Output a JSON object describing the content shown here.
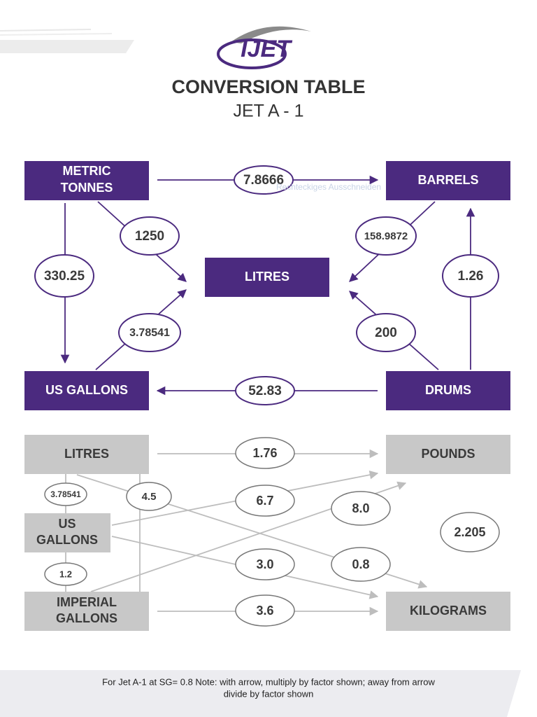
{
  "logo": "IJET",
  "header": {
    "title": "CONVERSION TABLE",
    "subtitle": "JET A - 1"
  },
  "overlay_text": "Rechteckiges Ausschneiden",
  "upper": {
    "nodes": {
      "metric_tonnes": [
        "METRIC",
        "TONNES"
      ],
      "barrels": "BARRELS",
      "litres": "LITRES",
      "us_gallons": "US GALLONS",
      "drums": "DRUMS"
    },
    "factors": {
      "tonnes_barrels": "7.8666",
      "tonnes_litres": "1250",
      "barrels_litres": "158.9872",
      "tonnes_gallons": "330.25",
      "drums_barrels": "1.26",
      "gallons_litres": "3.78541",
      "drums_litres": "200",
      "drums_gallons": "52.83"
    }
  },
  "lower": {
    "nodes": {
      "litres": "LITRES",
      "pounds": "POUNDS",
      "us_gallons": [
        "US",
        "GALLONS"
      ],
      "imperial_gallons": [
        "IMPERIAL",
        "GALLONS"
      ],
      "kilograms": "KILOGRAMS"
    },
    "factors": {
      "litres_pounds": "1.76",
      "gallons_litres": "3.78541",
      "imperial_litres": "4.5",
      "gallons_pounds": "6.7",
      "imperial_pounds": "8.0",
      "kilograms_pounds": "2.205",
      "gallons_kilograms": "3.0",
      "litres_kilograms": "0.8",
      "imperial_gallons": "1.2",
      "imperial_kilograms": "3.6"
    }
  },
  "footer": {
    "note_lines": [
      "For Jet A-1 at SG= 0.8 Note: with arrow, multiply by factor shown; away from arrow",
      "divide by factor shown"
    ]
  }
}
